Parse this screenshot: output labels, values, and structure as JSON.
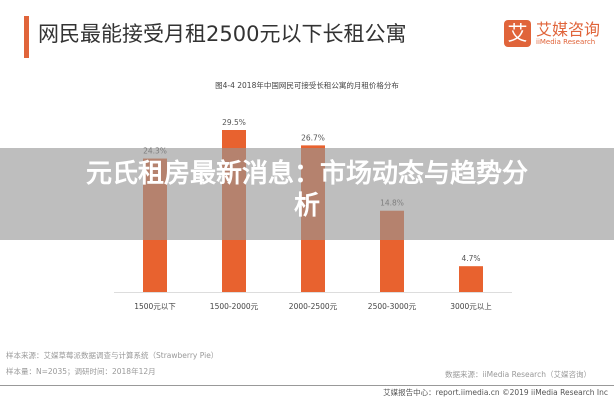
{
  "header": {
    "title": "网民最能接受月租2500元以下长租公寓",
    "logo_mark": "艾",
    "logo_cn": "艾媒咨询",
    "logo_en": "iiMedia Research"
  },
  "chart_data": {
    "type": "bar",
    "title": "图4-4 2018年中国网民可接受长租公寓的月租价格分布",
    "categories": [
      "1500元以下",
      "1500-2000元",
      "2000-2500元",
      "2500-3000元",
      "3000元以上"
    ],
    "values": [
      24.3,
      29.5,
      26.7,
      14.8,
      4.7
    ],
    "data_labels": [
      "24.3%",
      "29.5%",
      "26.7%",
      "14.8%",
      "4.7%"
    ],
    "unit": "%",
    "ylim": [
      0,
      30
    ],
    "grid": false,
    "color": "#e8622f"
  },
  "notes": {
    "source": "样本来源：艾媒草莓派数据调查与计算系统（Strawberry Pie）",
    "sample": "样本量：N=2035；调研时间：2018年12月",
    "data_source": "数据来源：iiMedia Research（艾媒咨询）"
  },
  "footer": "艾媒报告中心：report.iimedia.cn ©2019 iiMedia Research Inc",
  "overlay_title": "元氏租房最新消息：市场动态与趋势分析"
}
